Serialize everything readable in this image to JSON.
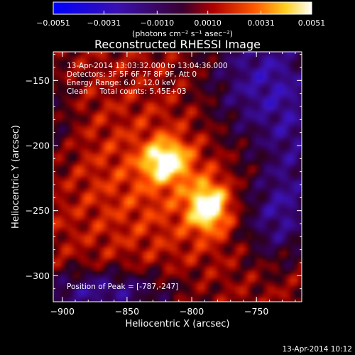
{
  "chart_data": {
    "type": "heatmap",
    "title": "Reconstructed RHESSI Image",
    "xlabel": "Heliocentric X (arcsec)",
    "ylabel": "Heliocentric Y (arcsec)",
    "xlim": [
      -907,
      -715
    ],
    "ylim": [
      -320,
      -128
    ],
    "x_ticks": [
      -900,
      -850,
      -800,
      -750
    ],
    "y_ticks": [
      -300,
      -250,
      -200,
      -150
    ],
    "x_tick_labels": [
      "−900",
      "−850",
      "−800",
      "−750"
    ],
    "y_tick_labels": [
      "−300",
      "−250",
      "−200",
      "−150"
    ],
    "colorbar": {
      "min": -0.0051,
      "max": 0.0051,
      "ticks": [
        -0.0051,
        -0.0031,
        -0.001,
        0.001,
        0.0031,
        0.0051
      ],
      "tick_labels": [
        "−0.0051",
        "−0.0031",
        "−0.0010",
        "0.0010",
        "0.0031",
        "0.0051"
      ],
      "unit_text": "(photons cm⁻² s⁻¹ asec⁻²)"
    },
    "peaks": [
      {
        "x": -820,
        "y": -212,
        "value": 0.0048
      },
      {
        "x": -787,
        "y": -247,
        "value": 0.0051
      }
    ],
    "annotations": [
      "13-Apr-2014 13:03:32.000 to 13:04:36.000",
      "Detectors: 3F 5F 6F 7F 8F 9F, Att 0",
      "Energy Range: 6.0 - 12.0 keV",
      "Clean     Total counts: 5.45E+03"
    ],
    "peak_label": "Position of Peak = [-787,-247]",
    "timestamp": "13-Apr-2014 10:12"
  }
}
